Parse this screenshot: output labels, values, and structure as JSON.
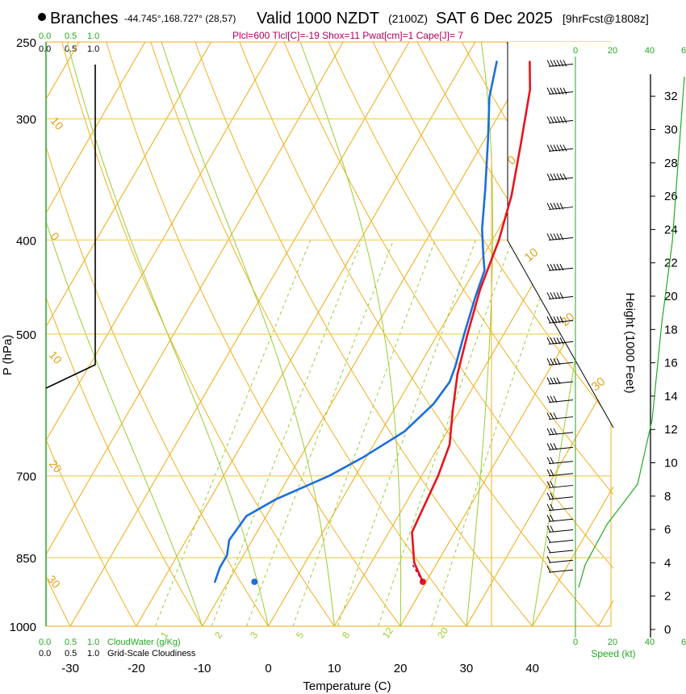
{
  "header": {
    "station": "Branches",
    "coords": "-44.745°,168.727° (28,57)",
    "valid": "Valid 1000 NZDT",
    "zulu": "(2100Z)",
    "date": "SAT 6 Dec 2025",
    "forecast": "[9hrFcst@1808z]",
    "indices": "Plcl=600 Tlcl[C]=-19 Shox=11 Pwat[cm]=1 Cape[J]= 7"
  },
  "axes": {
    "xlabel": "Temperature (C)",
    "ylabel": "P (hPa)",
    "height_label": "Height (1000 Feet)",
    "speed_label": "Speed (kt)",
    "cloud_water_label": "CloudWater (g/Kg)",
    "cloudiness_label": "Grid-Scale Cloudiness"
  },
  "chart_data": {
    "type": "skew-t",
    "title": "Branches Valid 1000 NZDT (2100Z) SAT 6 Dec 2025",
    "xlim": [
      -35,
      45
    ],
    "ylim": [
      1000,
      250
    ],
    "x_ticks": [
      -30,
      -20,
      -10,
      0,
      10,
      20,
      30,
      40
    ],
    "p_ticks": [
      250,
      300,
      400,
      500,
      700,
      850,
      1000
    ],
    "height_ticks_kft": [
      0,
      2,
      4,
      6,
      8,
      10,
      12,
      14,
      16,
      18,
      20,
      22,
      24,
      26,
      28,
      30,
      32
    ],
    "isotherm_labels": [
      -30,
      -20,
      -10,
      0,
      10,
      20,
      30
    ],
    "dry_adiabat_labels": [
      0,
      10,
      20,
      30
    ],
    "mixing_ratio_labels": [
      "1",
      "2",
      "3",
      "5",
      "8",
      "12",
      "20"
    ],
    "cloud_scale_top": [
      "0.0",
      "0.5",
      "1.0"
    ],
    "speed_ticks": [
      "0",
      "20",
      "40",
      "6"
    ],
    "temperature": {
      "name": "Temperature",
      "color": "#e8141c",
      "points": [
        [
          19.5,
          900
        ],
        [
          16.5,
          860
        ],
        [
          13.5,
          800
        ],
        [
          12.5,
          700
        ],
        [
          11.5,
          650
        ],
        [
          9,
          600
        ],
        [
          6.5,
          550
        ],
        [
          4.5,
          500
        ],
        [
          2.5,
          450
        ],
        [
          1,
          400
        ],
        [
          -1,
          360
        ],
        [
          -4,
          320
        ],
        [
          -7.5,
          280
        ],
        [
          -10,
          262
        ]
      ]
    },
    "dewpoint": {
      "name": "Dewpoint",
      "color": "#1a6fdc",
      "points": [
        [
          -12,
          900
        ],
        [
          -12.5,
          870
        ],
        [
          -12.5,
          845
        ],
        [
          -13.5,
          815
        ],
        [
          -13,
          770
        ],
        [
          -10,
          740
        ],
        [
          -4,
          700
        ],
        [
          -0.5,
          670
        ],
        [
          3.5,
          630
        ],
        [
          5.5,
          590
        ],
        [
          6,
          560
        ],
        [
          5.5,
          540
        ],
        [
          4,
          500
        ],
        [
          2.5,
          460
        ],
        [
          1.5,
          430
        ],
        [
          0,
          415
        ],
        [
          -2.5,
          390
        ],
        [
          -5.5,
          355
        ],
        [
          -9.5,
          315
        ],
        [
          -13,
          285
        ],
        [
          -15,
          262
        ]
      ]
    },
    "parcel_start": {
      "temp": 19.5,
      "dewpoint": -6,
      "pressure": 900
    },
    "winds": [
      {
        "p": 265,
        "dir": 300,
        "spd": 60
      },
      {
        "p": 283,
        "dir": 300,
        "spd": 60
      },
      {
        "p": 303,
        "dir": 300,
        "spd": 60
      },
      {
        "p": 324,
        "dir": 300,
        "spd": 55
      },
      {
        "p": 347,
        "dir": 295,
        "spd": 55
      },
      {
        "p": 372,
        "dir": 295,
        "spd": 50
      },
      {
        "p": 400,
        "dir": 295,
        "spd": 50
      },
      {
        "p": 430,
        "dir": 290,
        "spd": 50
      },
      {
        "p": 460,
        "dir": 290,
        "spd": 45
      },
      {
        "p": 487,
        "dir": 290,
        "spd": 45
      },
      {
        "p": 512,
        "dir": 290,
        "spd": 45
      },
      {
        "p": 538,
        "dir": 290,
        "spd": 40
      },
      {
        "p": 563,
        "dir": 285,
        "spd": 35
      },
      {
        "p": 588,
        "dir": 285,
        "spd": 30
      },
      {
        "p": 612,
        "dir": 285,
        "spd": 30
      },
      {
        "p": 635,
        "dir": 280,
        "spd": 25
      },
      {
        "p": 658,
        "dir": 280,
        "spd": 25
      },
      {
        "p": 680,
        "dir": 280,
        "spd": 20
      },
      {
        "p": 700,
        "dir": 275,
        "spd": 20
      },
      {
        "p": 720,
        "dir": 275,
        "spd": 15
      },
      {
        "p": 740,
        "dir": 270,
        "spd": 15
      },
      {
        "p": 760,
        "dir": 270,
        "spd": 15
      },
      {
        "p": 780,
        "dir": 265,
        "spd": 15
      },
      {
        "p": 800,
        "dir": 260,
        "spd": 15
      },
      {
        "p": 820,
        "dir": 255,
        "spd": 10
      },
      {
        "p": 840,
        "dir": 250,
        "spd": 10
      },
      {
        "p": 860,
        "dir": 245,
        "spd": 10
      },
      {
        "p": 880,
        "dir": 240,
        "spd": 5
      }
    ]
  }
}
